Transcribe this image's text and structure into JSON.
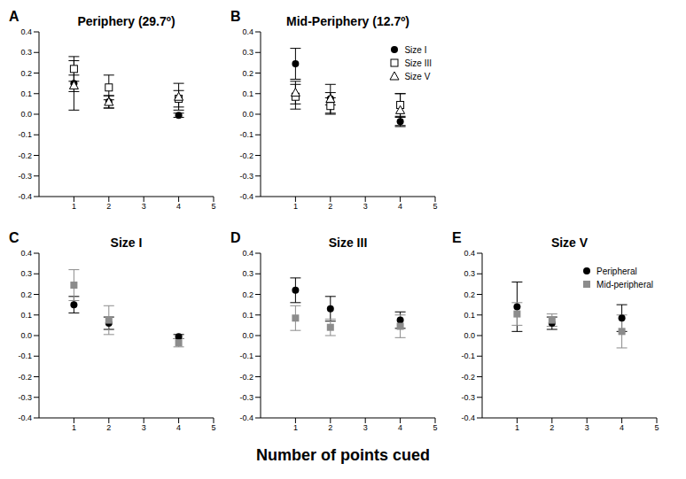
{
  "x_label": "Number of points cued",
  "chart_data": [
    {
      "annotation": "A",
      "type": "scatter",
      "title": "Periphery (29.7º)",
      "x": [
        1,
        2,
        4
      ],
      "xlim": [
        0,
        5
      ],
      "xticks": [
        1,
        2,
        3,
        4,
        5
      ],
      "ylim": [
        -0.4,
        0.4
      ],
      "yticks": [
        -0.4,
        -0.3,
        -0.2,
        -0.1,
        {
          "value": 0,
          "label": "0.0"
        },
        0.1,
        0.2,
        0.3,
        0.4
      ],
      "series": [
        {
          "name": "Size I",
          "color": "#000000",
          "marker": "circle",
          "values": [
            0.15,
            0.06,
            -0.005
          ],
          "errors": [
            0.04,
            0.03,
            0.01
          ]
        },
        {
          "name": "Size III",
          "color": "#000000",
          "marker": "square_open",
          "values": [
            0.22,
            0.13,
            0.075
          ],
          "errors": [
            0.06,
            0.06,
            0.04
          ]
        },
        {
          "name": "Size V",
          "color": "#000000",
          "marker": "triangle_open",
          "values": [
            0.14,
            0.06,
            0.085
          ],
          "errors": [
            0.12,
            0.03,
            0.065
          ]
        }
      ]
    },
    {
      "annotation": "B",
      "type": "scatter",
      "title": "Mid-Periphery (12.7º)",
      "legend": "top-right",
      "x": [
        1,
        2,
        4
      ],
      "xlim": [
        0,
        5
      ],
      "xticks": [
        1,
        2,
        3,
        4,
        5
      ],
      "ylim": [
        -0.4,
        0.4
      ],
      "yticks": [
        -0.4,
        -0.3,
        -0.2,
        -0.1,
        {
          "value": 0,
          "label": "0.0"
        },
        0.1,
        0.2,
        0.3,
        0.4
      ],
      "series": [
        {
          "name": "Size I",
          "color": "#000000",
          "marker": "circle",
          "values": [
            0.245,
            0.075,
            -0.035
          ],
          "errors": [
            0.075,
            0.07,
            0.02
          ]
        },
        {
          "name": "Size III",
          "color": "#000000",
          "marker": "square_open",
          "values": [
            0.085,
            0.04,
            0.045
          ],
          "errors": [
            0.06,
            0.04,
            0.055
          ]
        },
        {
          "name": "Size V",
          "color": "#000000",
          "marker": "triangle_open",
          "values": [
            0.105,
            0.075,
            0.02
          ],
          "errors": [
            0.055,
            0.03,
            0.08
          ]
        }
      ]
    },
    {
      "annotation": "C",
      "type": "scatter",
      "title": "Size I",
      "x": [
        1,
        2,
        4
      ],
      "xlim": [
        0,
        5
      ],
      "xticks": [
        1,
        2,
        3,
        4,
        5
      ],
      "ylim": [
        -0.4,
        0.4
      ],
      "yticks": [
        -0.4,
        -0.3,
        -0.2,
        -0.1,
        {
          "value": 0,
          "label": "0.0"
        },
        0.1,
        0.2,
        0.3,
        0.4
      ],
      "series": [
        {
          "name": "Peripheral",
          "color": "#000000",
          "marker": "circle",
          "values": [
            0.15,
            0.06,
            -0.005
          ],
          "errors": [
            0.04,
            0.03,
            0.01
          ]
        },
        {
          "name": "Mid-peripheral",
          "color": "#8c8c8c",
          "marker": "square",
          "values": [
            0.245,
            0.075,
            -0.035
          ],
          "errors": [
            0.075,
            0.07,
            0.02
          ]
        }
      ]
    },
    {
      "annotation": "D",
      "type": "scatter",
      "title": "Size III",
      "x": [
        1,
        2,
        4
      ],
      "xlim": [
        0,
        5
      ],
      "xticks": [
        1,
        2,
        3,
        4,
        5
      ],
      "ylim": [
        -0.4,
        0.4
      ],
      "yticks": [
        -0.4,
        -0.3,
        -0.2,
        -0.1,
        {
          "value": 0,
          "label": "0.0"
        },
        0.1,
        0.2,
        0.3,
        0.4
      ],
      "series": [
        {
          "name": "Peripheral",
          "color": "#000000",
          "marker": "circle",
          "values": [
            0.22,
            0.13,
            0.075
          ],
          "errors": [
            0.06,
            0.06,
            0.04
          ]
        },
        {
          "name": "Mid-peripheral",
          "color": "#8c8c8c",
          "marker": "square",
          "values": [
            0.085,
            0.04,
            0.045
          ],
          "errors": [
            0.06,
            0.04,
            0.055
          ]
        }
      ]
    },
    {
      "annotation": "E",
      "type": "scatter",
      "title": "Size V",
      "legend": "top-right",
      "x": [
        1,
        2,
        4
      ],
      "xlim": [
        0,
        5
      ],
      "xticks": [
        1,
        2,
        3,
        4,
        5
      ],
      "ylim": [
        -0.4,
        0.4
      ],
      "yticks": [
        -0.4,
        -0.3,
        -0.2,
        -0.1,
        {
          "value": 0,
          "label": "0.0"
        },
        0.1,
        0.2,
        0.3,
        0.4
      ],
      "series": [
        {
          "name": "Peripheral",
          "color": "#000000",
          "marker": "circle",
          "values": [
            0.14,
            0.06,
            0.085
          ],
          "errors": [
            0.12,
            0.03,
            0.065
          ]
        },
        {
          "name": "Mid-peripheral",
          "color": "#8c8c8c",
          "marker": "square",
          "values": [
            0.105,
            0.075,
            0.02
          ],
          "errors": [
            0.055,
            0.03,
            0.08
          ]
        }
      ]
    }
  ]
}
